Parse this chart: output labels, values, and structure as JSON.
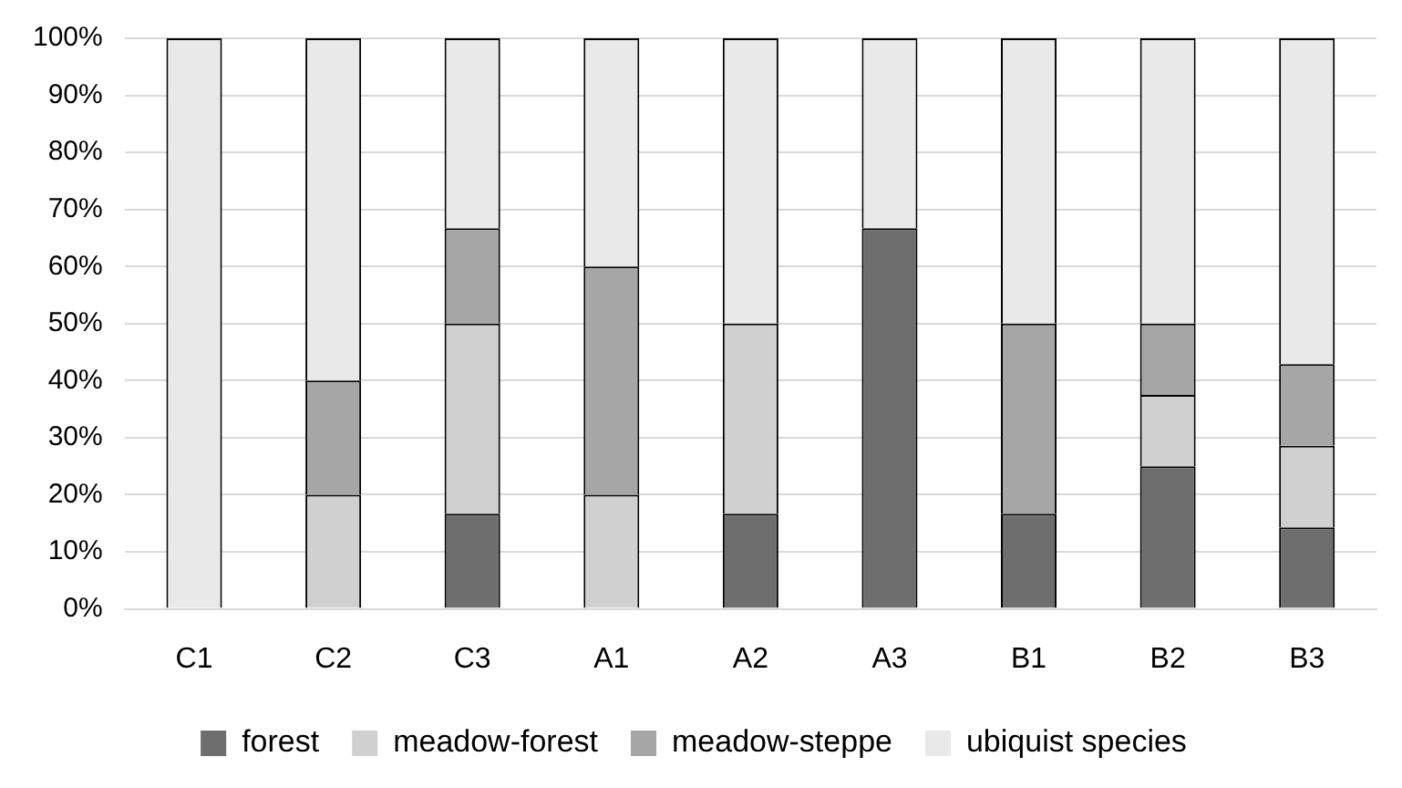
{
  "chart_data": {
    "type": "bar",
    "stacked": true,
    "categories": [
      "C1",
      "C2",
      "C3",
      "A1",
      "A2",
      "A3",
      "B1",
      "B2",
      "B3"
    ],
    "series": [
      {
        "name": "forest",
        "color": "#6e6e6e",
        "values": [
          0,
          0,
          16.7,
          0,
          16.7,
          66.7,
          16.7,
          25,
          14.3
        ]
      },
      {
        "name": "meadow-forest",
        "color": "#d0d0d0",
        "values": [
          0,
          20,
          33.3,
          20,
          33.3,
          0,
          0,
          12.5,
          14.3
        ]
      },
      {
        "name": "meadow-steppe",
        "color": "#a6a6a6",
        "values": [
          0,
          20,
          16.7,
          40,
          0,
          0,
          33.3,
          12.5,
          14.3
        ]
      },
      {
        "name": "ubiquist species",
        "color": "#e9e9e9",
        "values": [
          100,
          60,
          33.3,
          40,
          50,
          33.3,
          50,
          50,
          57.1
        ]
      }
    ],
    "ylim": [
      0,
      100
    ],
    "yticks": [
      {
        "value": 0,
        "label": "0%"
      },
      {
        "value": 10,
        "label": "10%"
      },
      {
        "value": 20,
        "label": "20%"
      },
      {
        "value": 30,
        "label": "30%"
      },
      {
        "value": 40,
        "label": "40%"
      },
      {
        "value": 50,
        "label": "50%"
      },
      {
        "value": 60,
        "label": "60%"
      },
      {
        "value": 70,
        "label": "70%"
      },
      {
        "value": 80,
        "label": "80%"
      },
      {
        "value": 90,
        "label": "90%"
      },
      {
        "value": 100,
        "label": "100%"
      }
    ],
    "grid": "y",
    "legend": "bottom"
  }
}
